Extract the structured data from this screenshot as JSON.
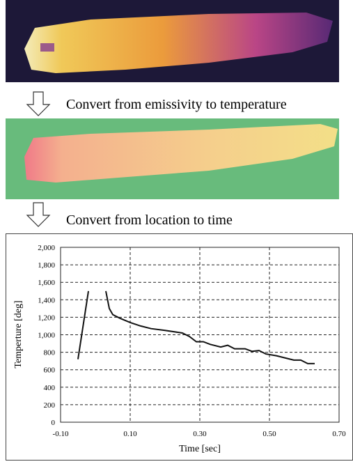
{
  "steps": [
    "Convert from emissivity to temperature",
    "Convert from location to time"
  ],
  "chart_data": {
    "type": "line",
    "x_label": "Time [sec]",
    "y_label": "Temperture [deg]",
    "xlim": [
      -0.1,
      0.7
    ],
    "xticks": [
      {
        "value": -0.1,
        "label": "-0.10"
      },
      {
        "value": 0.1,
        "label": "0.10"
      },
      {
        "value": 0.3,
        "label": "0.30"
      },
      {
        "value": 0.5,
        "label": "0.50"
      },
      {
        "value": 0.7,
        "label": "0.70"
      }
    ],
    "ylim": [
      0,
      2000
    ],
    "yticks": [
      0,
      200,
      400,
      600,
      800,
      {
        "value": 1000,
        "label": "1,000"
      },
      {
        "value": 1200,
        "label": "1,200"
      },
      {
        "value": 1400,
        "label": "1,400"
      },
      {
        "value": 1600,
        "label": "1,600"
      },
      {
        "value": 1800,
        "label": "1,800"
      },
      {
        "value": 2000,
        "label": "2,000"
      }
    ],
    "grid": true,
    "color": "#111111",
    "x": [
      -0.05,
      -0.02,
      null,
      0.03,
      0.04,
      0.05,
      0.07,
      0.1,
      0.13,
      0.16,
      0.2,
      0.25,
      0.27,
      0.29,
      0.31,
      0.33,
      0.36,
      0.38,
      0.4,
      0.43,
      0.45,
      0.47,
      0.49,
      0.52,
      0.55,
      0.57,
      0.59,
      0.61,
      0.63
    ],
    "values": [
      720,
      1500,
      null,
      1500,
      1300,
      1230,
      1190,
      1140,
      1100,
      1070,
      1050,
      1020,
      980,
      920,
      920,
      890,
      860,
      880,
      840,
      840,
      810,
      820,
      780,
      760,
      730,
      710,
      710,
      670,
      670
    ]
  }
}
